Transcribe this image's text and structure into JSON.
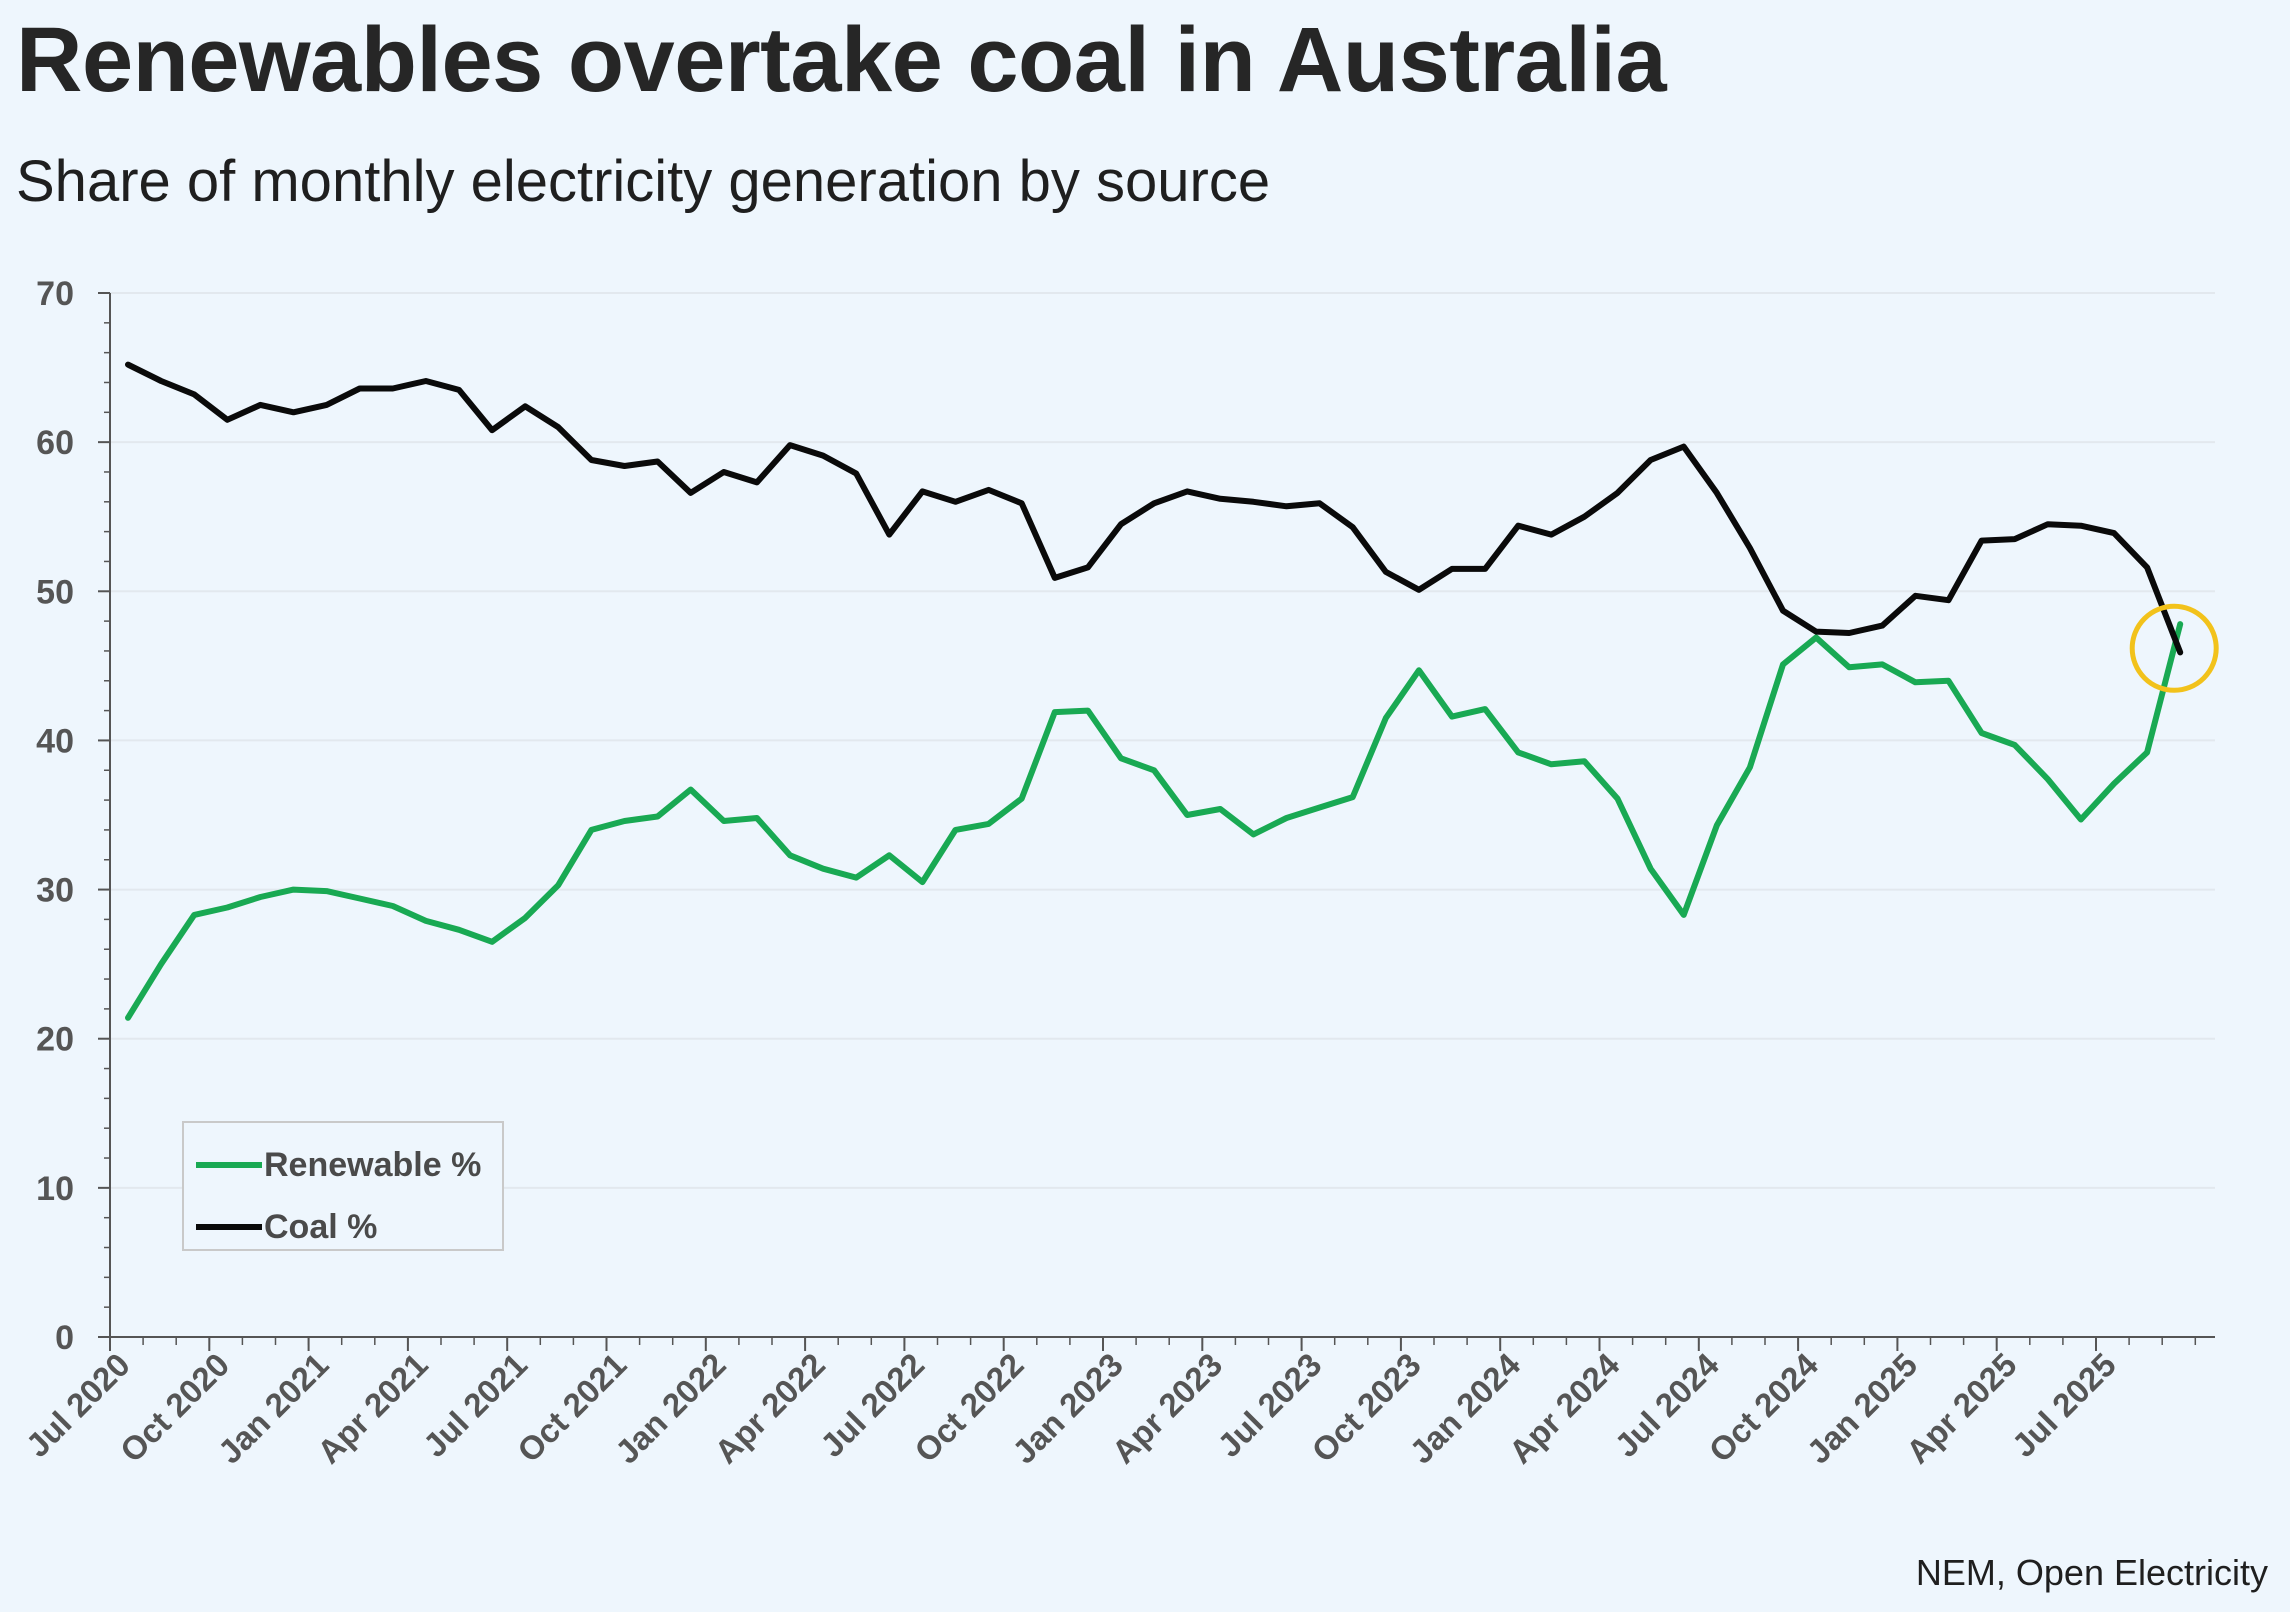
{
  "header": {
    "title": "Renewables overtake coal in Australia",
    "subtitle": "Share of monthly electricity generation by source"
  },
  "footer": {
    "source": "NEM, Open Electricity"
  },
  "colors": {
    "renewable": "#19a953",
    "coal": "#0a0a0a",
    "highlight": "#f2c21b",
    "grid": "#e2e8ee",
    "axis": "#555555"
  },
  "chart_data": {
    "type": "line",
    "title": "Renewables overtake coal in Australia",
    "subtitle": "Share of monthly electricity generation by source",
    "xlabel": "",
    "ylabel": "",
    "ylim": [
      0,
      70
    ],
    "yticks": [
      0,
      10,
      20,
      30,
      40,
      50,
      60,
      70
    ],
    "grid": "horizontal",
    "legend_position": "bottom-left",
    "x_start": "2020-07",
    "x_tick_labels": [
      "Jul 2020",
      "Oct 2020",
      "Jan 2021",
      "Apr 2021",
      "Jul 2021",
      "Oct 2021",
      "Jan 2022",
      "Apr 2022",
      "Jul 2022",
      "Oct 2022",
      "Jan 2023",
      "Apr 2023",
      "Jul 2023",
      "Oct 2023",
      "Jan 2024",
      "Apr 2024",
      "Jul 2024",
      "Oct 2024",
      "Jan 2025",
      "Apr 2025",
      "Jul 2025"
    ],
    "annotation": {
      "type": "circle",
      "at_month": "2025-10"
    },
    "series": [
      {
        "name": "Renewable %",
        "values": [
          21.4,
          25.0,
          28.3,
          28.8,
          29.5,
          30.0,
          29.9,
          29.4,
          28.9,
          27.9,
          27.3,
          26.5,
          28.1,
          30.3,
          34.0,
          34.6,
          34.9,
          36.7,
          34.6,
          34.8,
          32.3,
          31.4,
          30.8,
          32.3,
          30.5,
          34.0,
          34.4,
          36.1,
          41.9,
          42.0,
          38.8,
          38.0,
          35.0,
          35.4,
          33.7,
          34.8,
          35.5,
          36.2,
          41.5,
          44.7,
          41.6,
          42.1,
          39.2,
          38.4,
          38.6,
          36.1,
          31.4,
          28.3,
          34.3,
          38.2,
          45.1,
          46.9,
          44.9,
          45.1,
          43.9,
          44.0,
          40.5,
          39.7,
          37.4,
          34.7,
          37.1,
          39.2,
          47.8
        ]
      },
      {
        "name": "Coal %",
        "values": [
          65.2,
          64.1,
          63.2,
          61.5,
          62.5,
          62.0,
          62.5,
          63.6,
          63.6,
          64.1,
          63.5,
          60.8,
          62.4,
          61.0,
          58.8,
          58.4,
          58.7,
          56.6,
          58.0,
          57.3,
          59.8,
          59.1,
          57.9,
          53.8,
          56.7,
          56.0,
          56.8,
          55.9,
          50.9,
          51.6,
          54.5,
          55.9,
          56.7,
          56.2,
          56.0,
          55.7,
          55.9,
          54.3,
          51.3,
          50.1,
          51.5,
          51.5,
          54.4,
          53.8,
          55.0,
          56.6,
          58.8,
          59.7,
          56.6,
          52.9,
          48.7,
          47.3,
          47.2,
          47.7,
          49.7,
          49.4,
          53.4,
          53.5,
          54.5,
          54.4,
          53.9,
          51.6,
          45.9
        ]
      }
    ]
  }
}
